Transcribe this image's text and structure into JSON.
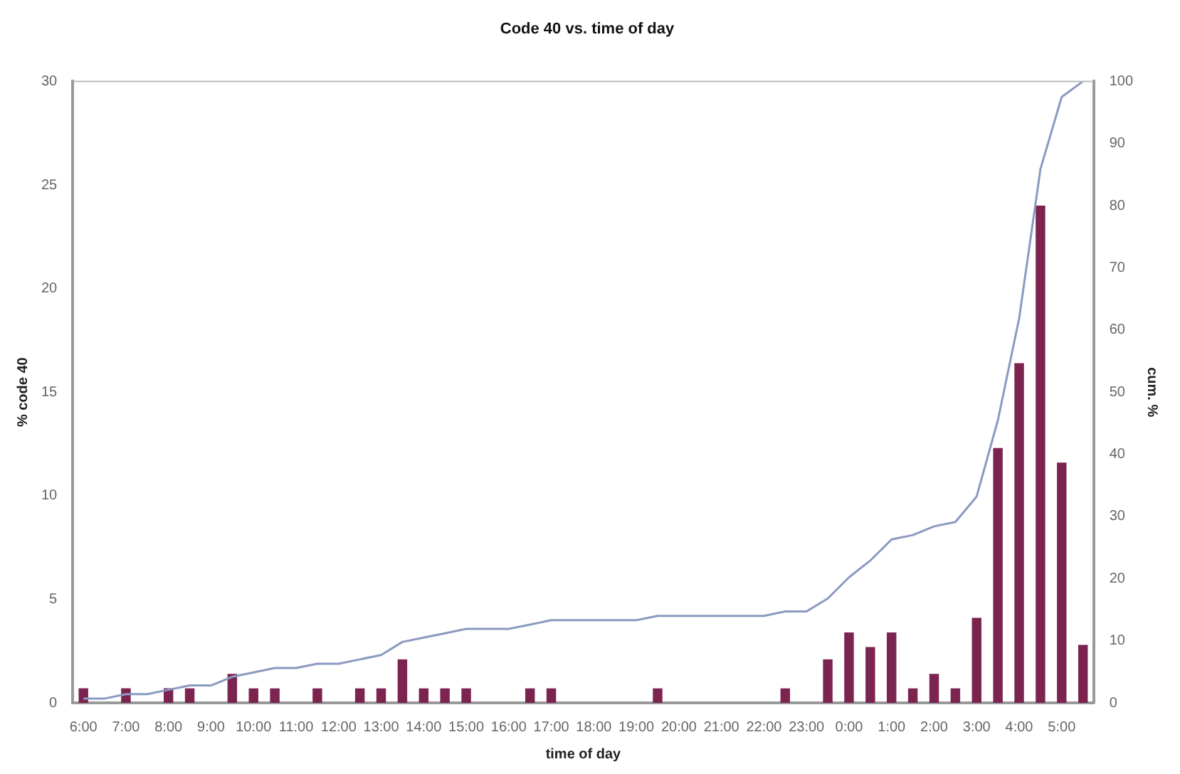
{
  "chart_data": {
    "type": "bar",
    "title": "Code 40 vs. time of day",
    "xlabel": "time of day",
    "ylabel": "% code 40",
    "y2label": "cum. %",
    "categories": [
      "6:00",
      null,
      "7:00",
      null,
      "8:00",
      null,
      "9:00",
      null,
      "10:00",
      null,
      "11:00",
      null,
      "12:00",
      null,
      "13:00",
      null,
      "14:00",
      null,
      "15:00",
      null,
      "16:00",
      null,
      "17:00",
      null,
      "18:00",
      null,
      "19:00",
      null,
      "20:00",
      null,
      "21:00",
      null,
      "22:00",
      null,
      "23:00",
      null,
      "0:00",
      null,
      "1:00",
      null,
      "2:00",
      null,
      "3:00",
      null,
      "4:00",
      null,
      "5:00",
      null
    ],
    "series": [
      {
        "color": "#7b2450",
        "values": [
          0.7,
          0,
          0.7,
          0,
          0.7,
          0.7,
          0,
          1.4,
          0.7,
          0.7,
          0,
          0.7,
          0,
          0.7,
          0.7,
          2.1,
          0.7,
          0.7,
          0.7,
          0,
          0,
          0.7,
          0.7,
          0,
          0,
          0,
          0,
          0.7,
          0,
          0,
          0,
          0,
          0,
          0.7,
          0,
          2.1,
          3.4,
          2.7,
          3.4,
          0.7,
          1.4,
          0.7,
          4.1,
          12.3,
          16.4,
          24.0,
          11.6,
          2.8
        ]
      },
      {
        "type": "line",
        "axis": "y2",
        "color": "#8a9ac0",
        "marker": "none",
        "values": [
          0.7,
          0.7,
          1.4,
          1.4,
          2.1,
          2.8,
          2.8,
          4.2,
          4.9,
          5.6,
          5.6,
          6.3,
          6.3,
          7.0,
          7.7,
          9.8,
          10.5,
          11.2,
          11.9,
          11.9,
          11.9,
          12.6,
          13.3,
          13.3,
          13.3,
          13.3,
          13.3,
          14.0,
          14.0,
          14.0,
          14.0,
          14.0,
          14.0,
          14.7,
          14.7,
          16.8,
          20.2,
          22.9,
          26.3,
          27.0,
          28.4,
          29.1,
          33.2,
          45.5,
          61.9,
          85.9,
          97.5,
          100
        ]
      }
    ],
    "ylim": [
      0,
      30
    ],
    "yticks": [
      0,
      5,
      10,
      15,
      20,
      25,
      30
    ],
    "y2lim": [
      0,
      100
    ],
    "y2ticks": [
      0,
      10,
      20,
      30,
      40,
      50,
      60,
      70,
      80,
      90,
      100
    ],
    "grid": false,
    "legend": false
  }
}
